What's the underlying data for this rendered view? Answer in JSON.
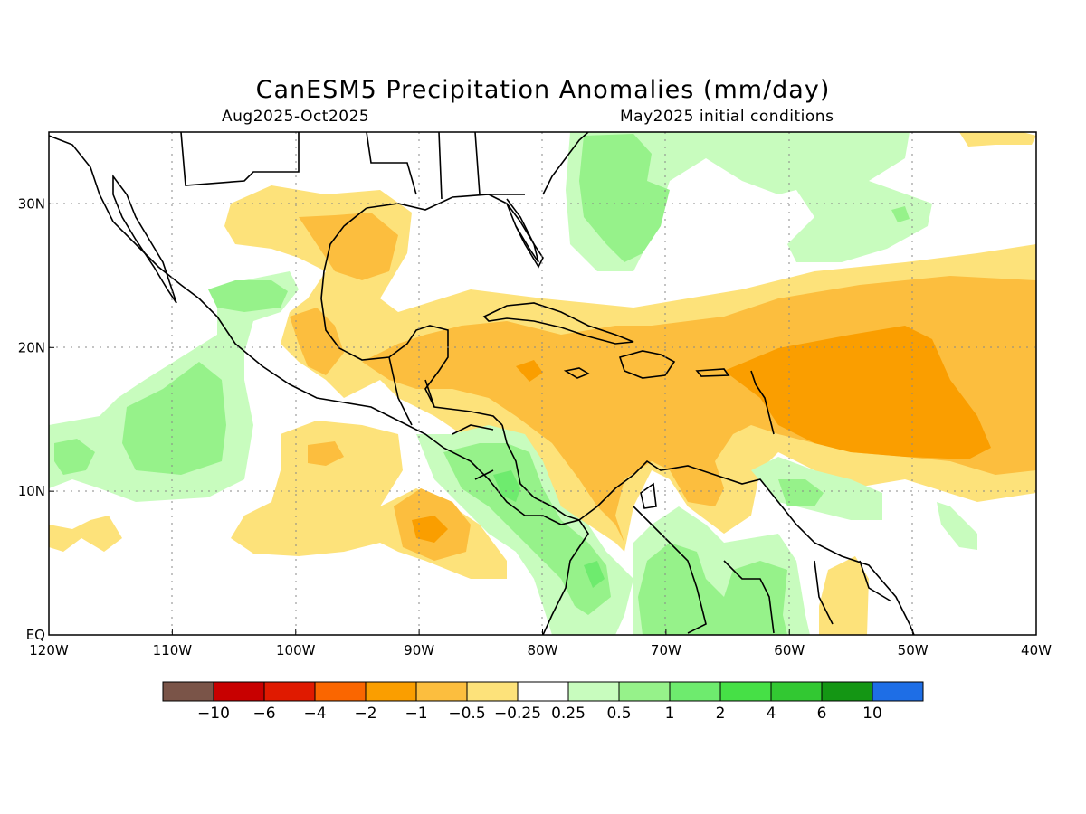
{
  "title": "CanESM5 Precipitation Anomalies (mm/day)",
  "subtitle_left": "Aug2025-Oct2025",
  "subtitle_right": "May2025 initial conditions",
  "map": {
    "lon_range": [
      -120,
      -40
    ],
    "lat_range": [
      0,
      35
    ],
    "grid": true,
    "x_ticks": [
      {
        "lon": -120,
        "label": "120W"
      },
      {
        "lon": -110,
        "label": "110W"
      },
      {
        "lon": -100,
        "label": "100W"
      },
      {
        "lon": -90,
        "label": "90W"
      },
      {
        "lon": -80,
        "label": "80W"
      },
      {
        "lon": -70,
        "label": "70W"
      },
      {
        "lon": -60,
        "label": "60W"
      },
      {
        "lon": -50,
        "label": "50W"
      },
      {
        "lon": -40,
        "label": "40W"
      }
    ],
    "y_ticks": [
      {
        "lat": 0,
        "label": "EQ"
      },
      {
        "lat": 10,
        "label": "10N"
      },
      {
        "lat": 20,
        "label": "20N"
      },
      {
        "lat": 30,
        "label": "30N"
      }
    ]
  },
  "colorbar": {
    "colors": [
      "#7a5448",
      "#c80000",
      "#e01a00",
      "#fa6600",
      "#fa9e00",
      "#fcbe3e",
      "#fde27a",
      "#ffffff",
      "#c8fcbe",
      "#96f28a",
      "#6eeb6e",
      "#46e046",
      "#32c832",
      "#149614",
      "#1e6ee6"
    ],
    "labels": [
      "−10",
      "−6",
      "−4",
      "−2",
      "−1",
      "−0.5",
      "−0.25",
      "0.25",
      "0.5",
      "1",
      "2",
      "4",
      "6",
      "10"
    ]
  }
}
